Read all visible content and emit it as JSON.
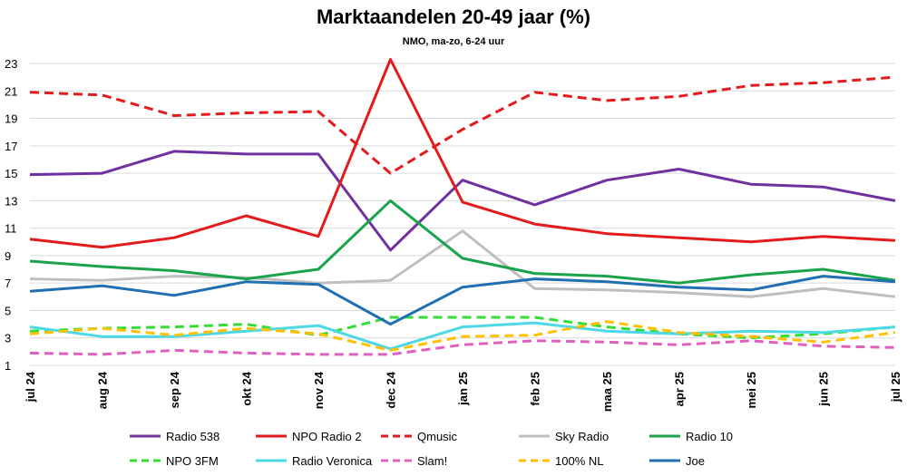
{
  "chart_data": {
    "type": "line",
    "title": "Marktaandelen 20-49 jaar (%)",
    "subtitle": "NMO, ma-zo, 6-24 uur",
    "xlabel": "",
    "ylabel": "",
    "categories": [
      "jul 24",
      "aug 24",
      "sep 24",
      "okt 24",
      "nov 24",
      "dec 24",
      "jan 25",
      "feb 25",
      "maa 25",
      "apr 25",
      "mei 25",
      "jun 25",
      "jul 25"
    ],
    "yticks": [
      1,
      3,
      5,
      7,
      9,
      11,
      13,
      15,
      17,
      19,
      21,
      23
    ],
    "ylim": [
      1,
      24
    ],
    "grid": true,
    "legend_position": "bottom",
    "series": [
      {
        "name": "Radio 538",
        "color": "#7030a0",
        "dash": "solid",
        "values": [
          14.9,
          15.0,
          16.6,
          16.4,
          16.4,
          9.4,
          14.5,
          12.7,
          14.5,
          15.3,
          14.2,
          14.0,
          13.0
        ]
      },
      {
        "name": "NPO Radio 2",
        "color": "#e41a1c",
        "dash": "solid",
        "values": [
          10.2,
          9.6,
          10.3,
          11.9,
          10.4,
          23.3,
          12.9,
          11.3,
          10.6,
          10.3,
          10.0,
          10.4,
          10.1
        ]
      },
      {
        "name": "Qmusic",
        "color": "#e41a1c",
        "dash": "dashed",
        "values": [
          20.9,
          20.7,
          19.2,
          19.4,
          19.5,
          15.0,
          18.2,
          20.9,
          20.3,
          20.6,
          21.4,
          21.6,
          22.0
        ]
      },
      {
        "name": "Sky Radio",
        "color": "#bfbfbf",
        "dash": "solid",
        "values": [
          7.3,
          7.2,
          7.5,
          7.4,
          7.0,
          7.2,
          10.8,
          6.6,
          6.5,
          6.3,
          6.0,
          6.6,
          6.0
        ]
      },
      {
        "name": "Radio 10",
        "color": "#1aa34a",
        "dash": "solid",
        "values": [
          8.6,
          8.2,
          7.9,
          7.3,
          8.0,
          13.0,
          8.8,
          7.7,
          7.5,
          7.0,
          7.6,
          8.0,
          7.2
        ]
      },
      {
        "name": "NPO 3FM",
        "color": "#33dd33",
        "dash": "dashed",
        "values": [
          3.5,
          3.7,
          3.8,
          4.0,
          3.2,
          4.5,
          4.5,
          4.5,
          3.8,
          3.3,
          3.0,
          3.3,
          3.8
        ]
      },
      {
        "name": "Radio Veronica",
        "color": "#4dd8e8",
        "dash": "solid",
        "values": [
          3.8,
          3.1,
          3.1,
          3.5,
          3.9,
          2.2,
          3.8,
          4.1,
          3.5,
          3.3,
          3.5,
          3.4,
          3.8
        ]
      },
      {
        "name": "Slam!",
        "color": "#e060c0",
        "dash": "dashed",
        "values": [
          1.9,
          1.8,
          2.1,
          1.9,
          1.8,
          1.8,
          2.5,
          2.8,
          2.7,
          2.5,
          2.8,
          2.4,
          2.3
        ]
      },
      {
        "name": "100% NL",
        "color": "#ffc000",
        "dash": "dashed",
        "values": [
          3.3,
          3.7,
          3.2,
          3.7,
          3.3,
          2.1,
          3.1,
          3.2,
          4.2,
          3.4,
          3.1,
          2.7,
          3.4
        ]
      },
      {
        "name": "Joe",
        "color": "#1f6fb2",
        "dash": "solid",
        "values": [
          6.4,
          6.8,
          6.1,
          7.1,
          6.9,
          4.0,
          6.7,
          7.3,
          7.1,
          6.7,
          6.5,
          7.5,
          7.1
        ]
      }
    ]
  }
}
